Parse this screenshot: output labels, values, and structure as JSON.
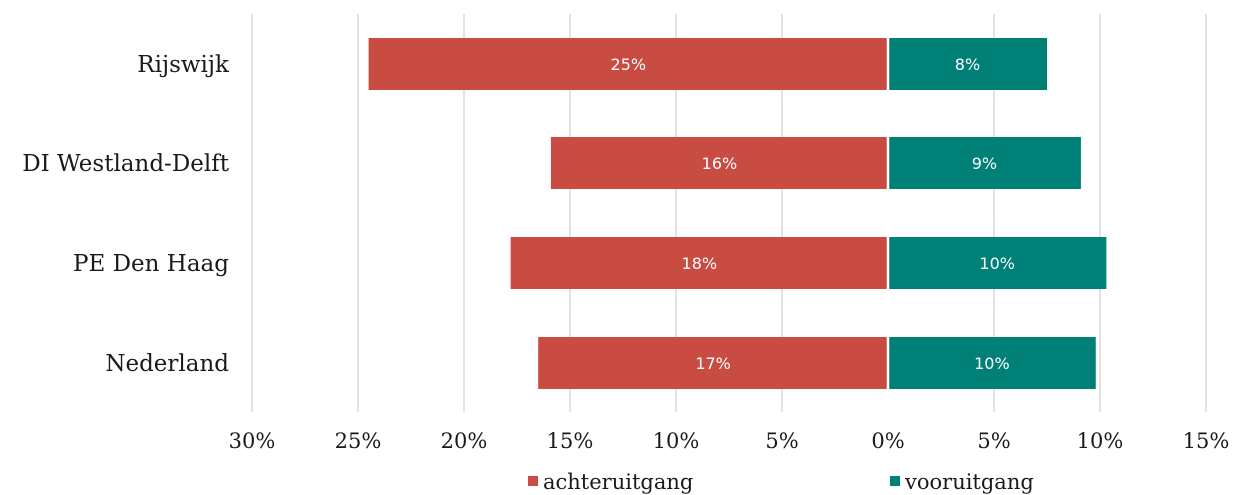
{
  "chart_data": {
    "type": "bar",
    "orientation": "horizontal-diverging",
    "title": "",
    "xlabel": "",
    "ylabel": "",
    "categories": [
      "Rijswijk",
      "DI Westland-Delft",
      "PE Den Haag",
      "Nederland"
    ],
    "series": [
      {
        "name": "achteruitgang",
        "color": "#c94c43",
        "direction": "left",
        "values": [
          24.5,
          15.9,
          17.8,
          16.5
        ],
        "labels": [
          "25%",
          "16%",
          "18%",
          "17%"
        ]
      },
      {
        "name": "vooruitgang",
        "color": "#008077",
        "direction": "right",
        "values": [
          7.5,
          9.1,
          10.3,
          9.8
        ],
        "labels": [
          "8%",
          "9%",
          "10%",
          "10%"
        ]
      }
    ],
    "xlim": [
      -30,
      15
    ],
    "xticks": [
      -30,
      -25,
      -20,
      -15,
      -10,
      -5,
      0,
      5,
      10,
      15
    ],
    "xtick_labels": [
      "30%",
      "25%",
      "20%",
      "15%",
      "10%",
      "5%",
      "0%",
      "5%",
      "10%",
      "15%"
    ],
    "grid": true,
    "legend_position": "bottom"
  }
}
